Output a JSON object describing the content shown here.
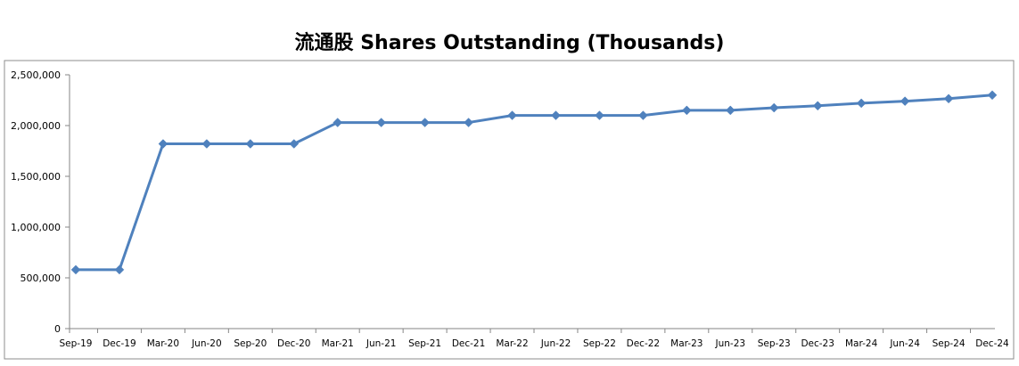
{
  "chart_data": {
    "type": "line",
    "title": "流通股 Shares Outstanding (Thousands)",
    "xlabel": "",
    "ylabel": "",
    "ylim": [
      0,
      2500000
    ],
    "yticks": [
      0,
      500000,
      1000000,
      1500000,
      2000000,
      2500000
    ],
    "ytick_labels": [
      "0",
      "500,000",
      "1,000,000",
      "1,500,000",
      "2,000,000",
      "2,500,000"
    ],
    "grid": false,
    "legend": "none",
    "categories": [
      "Sep-19",
      "Dec-19",
      "Mar-20",
      "Jun-20",
      "Sep-20",
      "Dec-20",
      "Mar-21",
      "Jun-21",
      "Sep-21",
      "Dec-21",
      "Mar-22",
      "Jun-22",
      "Sep-22",
      "Dec-22",
      "Mar-23",
      "Jun-23",
      "Sep-23",
      "Dec-23",
      "Mar-24",
      "Jun-24",
      "Sep-24",
      "Dec-24"
    ],
    "series": [
      {
        "values": [
          580000,
          580000,
          1820000,
          1820000,
          1820000,
          1820000,
          2030000,
          2030000,
          2030000,
          2030000,
          2100000,
          2100000,
          2100000,
          2100000,
          2150000,
          2150000,
          2175000,
          2195000,
          2220000,
          2240000,
          2265000,
          2300000
        ],
        "color": "#4f81bd",
        "marker": "diamond"
      }
    ]
  }
}
